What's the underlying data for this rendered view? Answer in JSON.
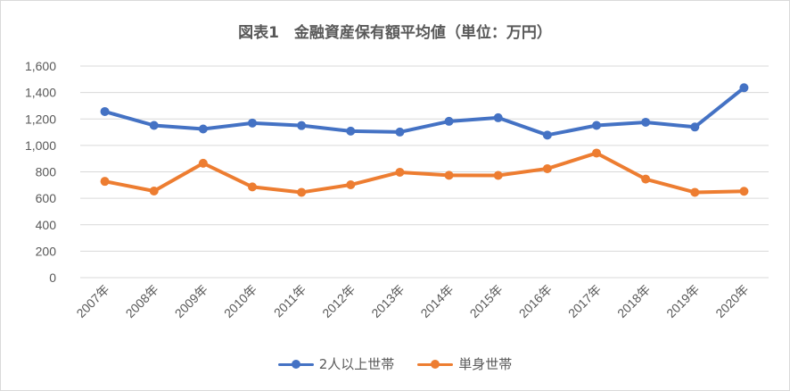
{
  "chart_data": {
    "type": "line",
    "title": "図表1　金融資産保有額平均値（単位：万円）",
    "xlabel": "",
    "ylabel": "",
    "categories": [
      "2007年",
      "2008年",
      "2009年",
      "2010年",
      "2011年",
      "2012年",
      "2013年",
      "2014年",
      "2015年",
      "2016年",
      "2017年",
      "2018年",
      "2019年",
      "2020年"
    ],
    "ylim": [
      0,
      1600
    ],
    "yticks": [
      "0",
      "200",
      "400",
      "600",
      "800",
      "1,000",
      "1,200",
      "1,400",
      "1,600"
    ],
    "grid": true,
    "legend_position": "bottom",
    "series": [
      {
        "name": "2人以上世帯",
        "color": "#4472C4",
        "values": [
          1256,
          1151,
          1124,
          1169,
          1150,
          1108,
          1101,
          1182,
          1209,
          1078,
          1151,
          1175,
          1139,
          1436
        ]
      },
      {
        "name": "単身世帯",
        "color": "#ED7D31",
        "values": [
          728,
          655,
          865,
          686,
          645,
          702,
          797,
          774,
          773,
          824,
          942,
          745,
          645,
          653
        ]
      }
    ]
  }
}
